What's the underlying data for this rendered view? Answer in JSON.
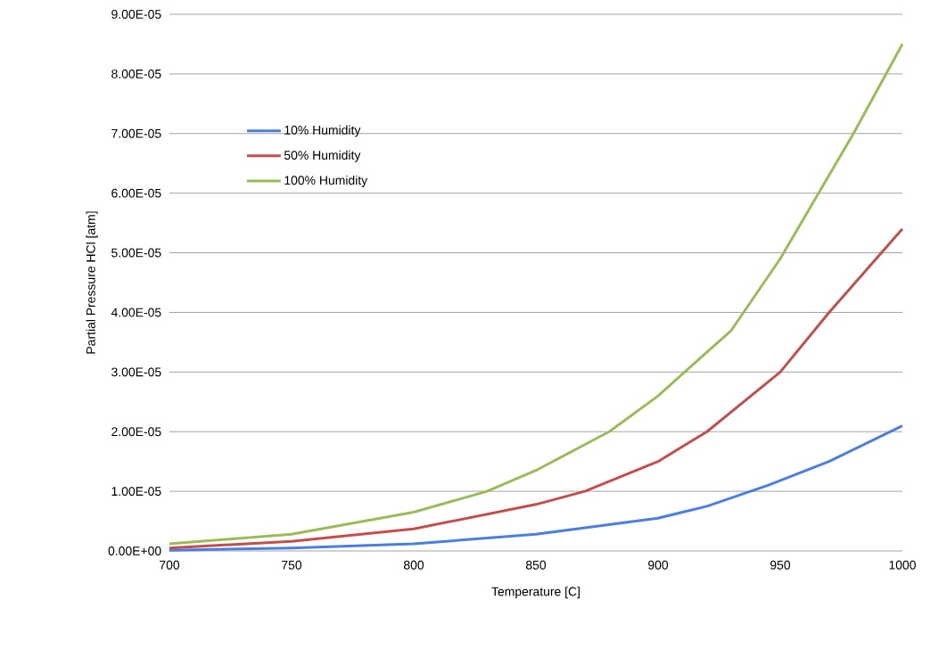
{
  "chart_data": {
    "type": "line",
    "xlabel": "Temperature [C]",
    "ylabel": "Partial Pressure HCl [atm]",
    "series": [
      {
        "name": "10% Humidity",
        "color": "#4a7fdc",
        "x": [
          700,
          750,
          800,
          850,
          900,
          920,
          945,
          970,
          1000
        ],
        "values": [
          1e-07,
          5e-07,
          1.2e-06,
          2.8e-06,
          5.5e-06,
          7.5e-06,
          1.1e-05,
          1.5e-05,
          2.1e-05
        ]
      },
      {
        "name": "50% Humidity",
        "color": "#c0504d",
        "x": [
          700,
          750,
          800,
          850,
          870,
          900,
          920,
          950,
          970,
          1000
        ],
        "values": [
          5e-07,
          1.6e-06,
          3.7e-06,
          7.8e-06,
          1e-05,
          1.5e-05,
          2e-05,
          3e-05,
          4e-05,
          5.4e-05
        ]
      },
      {
        "name": "100% Humidity",
        "color": "#9bbb59",
        "x": [
          700,
          750,
          800,
          830,
          850,
          880,
          900,
          930,
          950,
          970,
          980,
          1000
        ],
        "values": [
          1.2e-06,
          2.8e-06,
          6.5e-06,
          1e-05,
          1.35e-05,
          2e-05,
          2.6e-05,
          3.7e-05,
          4.9e-05,
          6.3e-05,
          7e-05,
          8.5e-05
        ]
      }
    ],
    "xlim": [
      700,
      1000
    ],
    "xticks": [
      700,
      750,
      800,
      850,
      900,
      950,
      1000
    ],
    "ylim": [
      0,
      9e-05
    ],
    "yticks": [
      {
        "value": 0,
        "label": "0.00E+00"
      },
      {
        "value": 1e-05,
        "label": "1.00E-05"
      },
      {
        "value": 2e-05,
        "label": "2.00E-05"
      },
      {
        "value": 3e-05,
        "label": "3.00E-05"
      },
      {
        "value": 4e-05,
        "label": "4.00E-05"
      },
      {
        "value": 5e-05,
        "label": "5.00E-05"
      },
      {
        "value": 6e-05,
        "label": "6.00E-05"
      },
      {
        "value": 7e-05,
        "label": "7.00E-05"
      },
      {
        "value": 8e-05,
        "label": "8.00E-05"
      },
      {
        "value": 9e-05,
        "label": "9.00E-05"
      }
    ],
    "grid": "y",
    "legend": "top left",
    "marker": "none",
    "line_style": "solid"
  }
}
